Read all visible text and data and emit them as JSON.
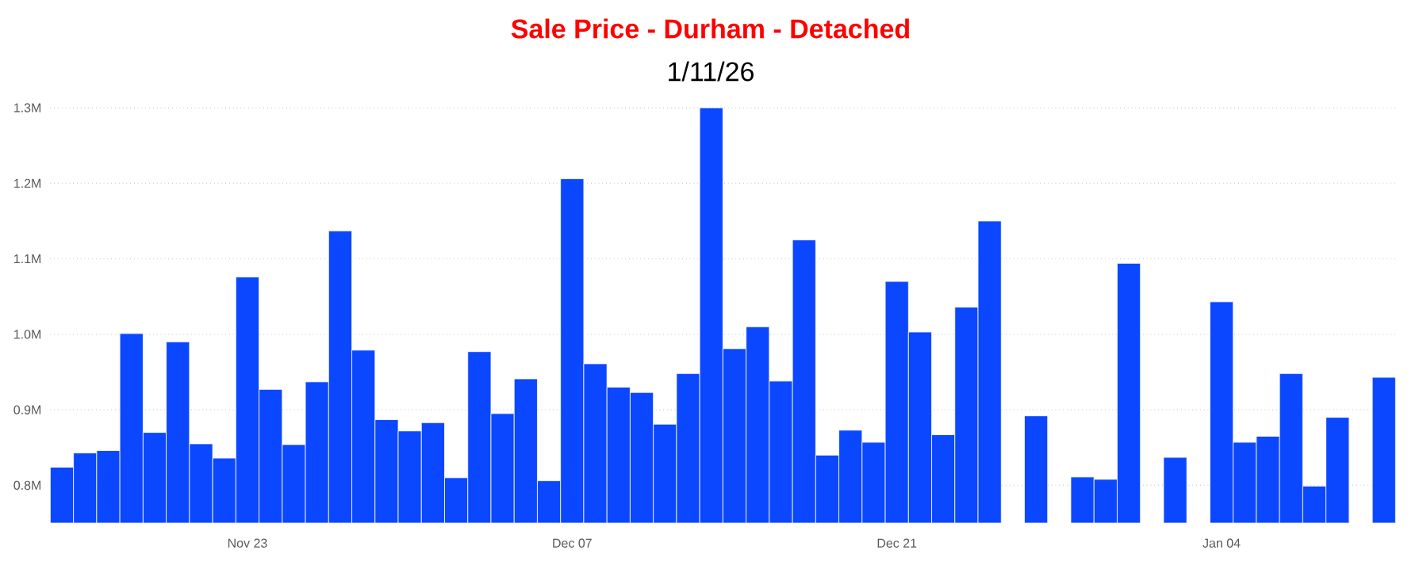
{
  "chart_data": {
    "type": "bar",
    "title": "Sale Price - Durham - Detached",
    "subtitle": "1/11/26",
    "categories": [
      null,
      null,
      null,
      null,
      null,
      null,
      null,
      null,
      "Nov 23",
      null,
      null,
      null,
      null,
      null,
      null,
      null,
      null,
      null,
      null,
      null,
      null,
      null,
      "Dec 07",
      null,
      null,
      null,
      null,
      null,
      null,
      null,
      null,
      null,
      null,
      null,
      null,
      null,
      "Dec 21",
      null,
      null,
      null,
      null,
      null,
      null,
      null,
      null,
      null,
      null,
      null,
      null,
      null,
      "Jan 04",
      null,
      null,
      null,
      null,
      null,
      null,
      null
    ],
    "values": [
      0.824,
      0.843,
      0.846,
      1.001,
      0.87,
      0.99,
      0.855,
      0.836,
      1.076,
      0.927,
      0.854,
      0.937,
      1.137,
      0.979,
      0.887,
      0.872,
      0.883,
      0.81,
      0.977,
      0.895,
      0.941,
      0.806,
      1.206,
      0.961,
      0.93,
      0.923,
      0.881,
      0.948,
      1.3,
      0.981,
      1.01,
      0.938,
      1.125,
      0.84,
      0.873,
      0.857,
      1.07,
      1.003,
      0.867,
      1.036,
      1.15,
      null,
      0.892,
      null,
      0.811,
      0.808,
      1.094,
      null,
      0.837,
      null,
      1.043,
      0.857,
      0.865,
      0.948,
      0.799,
      0.89,
      null,
      0.943
    ],
    "color": "#0b47ff",
    "ylim": [
      0.75,
      1.3
    ],
    "yticks": [
      {
        "value": 0.8,
        "label": "0.8M"
      },
      {
        "value": 0.9,
        "label": "0.9M"
      },
      {
        "value": 1.0,
        "label": "1.0M"
      },
      {
        "value": 1.1,
        "label": "1.1M"
      },
      {
        "value": 1.2,
        "label": "1.2M"
      },
      {
        "value": 1.3,
        "label": "1.3M"
      }
    ],
    "grid": "y"
  }
}
